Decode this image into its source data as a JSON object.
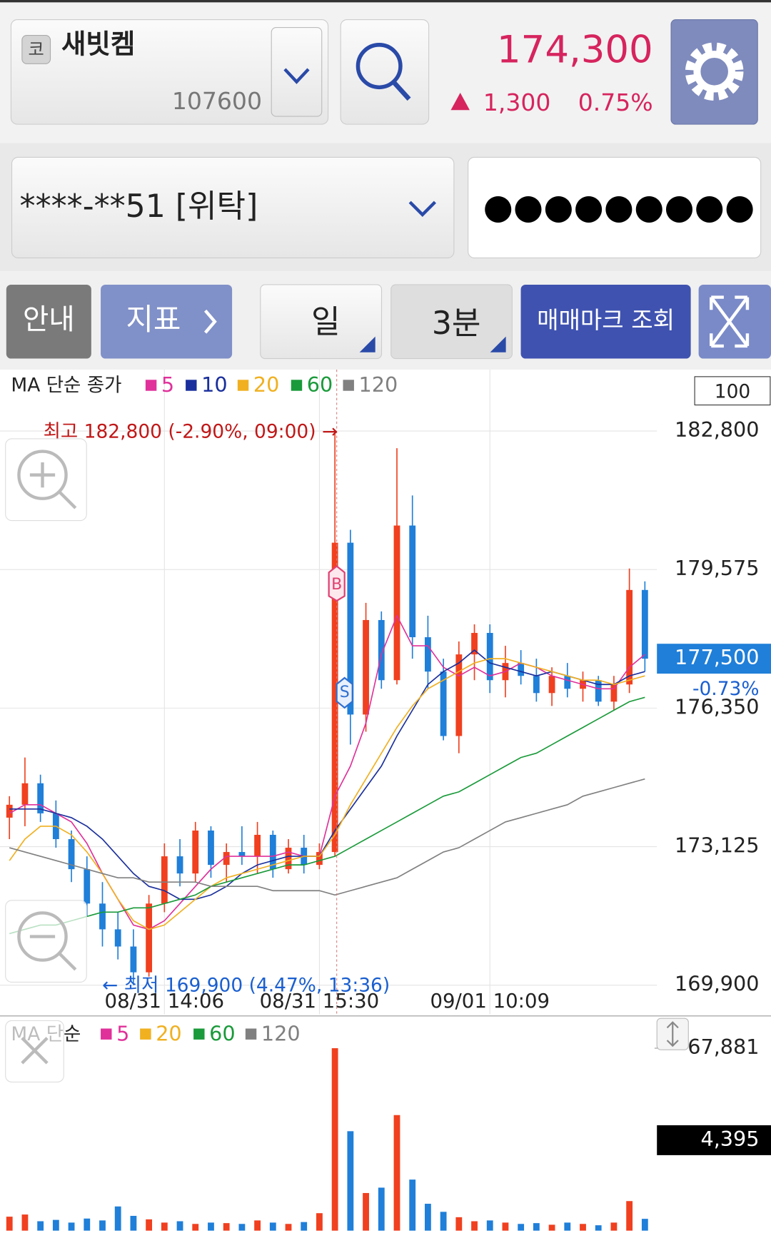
{
  "header": {
    "market_badge": "코",
    "stock_name": "새빗켐",
    "stock_code": "107600",
    "price": "174,300",
    "change": "1,300",
    "change_rate": "0.75%"
  },
  "account": {
    "number": "****-**51 [위탁]",
    "password": "●●●●●●●●●"
  },
  "toolbar": {
    "guide": "안내",
    "indicator": "지표",
    "period": "일",
    "interval": "3분",
    "trade_marks": "매매마크 조회"
  },
  "trade_markers": {
    "buy": "B",
    "sell": "S"
  },
  "chart_data": [
    {
      "type": "candlestick",
      "legend_title": "MA 단순 종가",
      "count_box": "100",
      "high_note": "최고 182,800 (-2.90%, 09:00) →",
      "low_note": "← 최저 169,900 (4.47%, 13:36)",
      "current_price": {
        "value": 177500,
        "label": "177,500"
      },
      "current_change": "-0.73%",
      "up_color": "#f0401f",
      "down_color": "#1f7fd9",
      "categories": [
        null,
        null,
        null,
        null,
        null,
        null,
        null,
        null,
        null,
        null,
        "08/31 14:06",
        null,
        null,
        null,
        null,
        null,
        null,
        null,
        null,
        null,
        "08/31 15:30",
        null,
        null,
        null,
        null,
        null,
        null,
        null,
        null,
        null,
        null,
        "09/01 10:09",
        null,
        null,
        null,
        null,
        null,
        null,
        null,
        null,
        null,
        null
      ],
      "open": [
        173800,
        174100,
        174600,
        173900,
        173300,
        172600,
        171800,
        171200,
        170800,
        170200,
        171800,
        172900,
        172500,
        173500,
        172700,
        173000,
        172900,
        173400,
        172600,
        173100,
        172700,
        173000,
        180200,
        176200,
        178400,
        177000,
        180600,
        178000,
        177200,
        175700,
        177600,
        178100,
        177000,
        177400,
        177100,
        176700,
        177100,
        176800,
        177000,
        176500,
        176900,
        179100
      ],
      "high": [
        174300,
        175200,
        174800,
        174200,
        173500,
        172900,
        172300,
        171600,
        171200,
        172000,
        173200,
        173300,
        173700,
        173600,
        173200,
        173600,
        173700,
        173500,
        173300,
        173400,
        173200,
        182800,
        180500,
        178800,
        178600,
        182400,
        181300,
        178500,
        177500,
        177900,
        178300,
        178300,
        177800,
        177700,
        177500,
        177300,
        177400,
        177200,
        177100,
        177100,
        179600,
        179300
      ],
      "low": [
        173300,
        173600,
        173700,
        173100,
        172300,
        171500,
        170800,
        170500,
        169900,
        170100,
        171600,
        172200,
        172300,
        172400,
        172300,
        172700,
        172500,
        172400,
        172500,
        172500,
        172600,
        172900,
        175500,
        175800,
        176800,
        176900,
        177500,
        176800,
        175600,
        175300,
        177000,
        176700,
        176600,
        176900,
        176500,
        176400,
        176600,
        176500,
        176400,
        176300,
        176700,
        177200
      ],
      "close": [
        174100,
        174600,
        173900,
        173300,
        172600,
        171800,
        171200,
        170800,
        170200,
        171800,
        172900,
        172500,
        173500,
        172700,
        173000,
        172900,
        173400,
        172600,
        173100,
        172700,
        173000,
        180200,
        176200,
        178400,
        177000,
        180600,
        178000,
        177200,
        175700,
        177600,
        178100,
        177000,
        177400,
        177100,
        176700,
        177100,
        176800,
        177000,
        176500,
        176900,
        179100,
        177500
      ],
      "ma_series": [
        {
          "name": "5",
          "color": "#e0309a",
          "values": [
            173900,
            174100,
            174100,
            173900,
            173700,
            173200,
            172500,
            171900,
            171300,
            171200,
            171400,
            171800,
            172200,
            172600,
            172900,
            172900,
            172900,
            172900,
            173000,
            172900,
            172900,
            174300,
            175000,
            176000,
            177600,
            178500,
            177800,
            177800,
            177300,
            177100,
            177300,
            177100,
            177200,
            177400,
            177300,
            177100,
            177000,
            176900,
            176800,
            176800,
            177300,
            177600
          ]
        },
        {
          "name": "10",
          "color": "#1a2f9c",
          "values": [
            174000,
            174000,
            174000,
            173900,
            173800,
            173600,
            173300,
            172900,
            172500,
            172200,
            172100,
            171900,
            171900,
            172000,
            172200,
            172500,
            172700,
            172800,
            172900,
            172900,
            172900,
            173500,
            174000,
            174500,
            175000,
            175700,
            176300,
            176900,
            177200,
            177400,
            177700,
            177400,
            177300,
            177200,
            177100,
            177200,
            177100,
            177000,
            176900,
            176900,
            177100,
            177200
          ]
        },
        {
          "name": "20",
          "color": "#f0b020",
          "values": [
            172800,
            173300,
            173600,
            173600,
            173400,
            173000,
            172500,
            171900,
            171400,
            171200,
            171300,
            171600,
            171900,
            172200,
            172400,
            172500,
            172600,
            172700,
            172800,
            172900,
            172900,
            173400,
            174100,
            174700,
            175300,
            175900,
            176400,
            176800,
            177000,
            177200,
            177400,
            177500,
            177500,
            177400,
            177300,
            177200,
            177100,
            177000,
            177000,
            176900,
            177000,
            177100
          ]
        },
        {
          "name": "60",
          "color": "#1a9a3a",
          "values": [
            171100,
            171200,
            171300,
            171300,
            171400,
            171500,
            171600,
            171600,
            171700,
            171700,
            171800,
            171900,
            172000,
            172200,
            172300,
            172400,
            172500,
            172600,
            172700,
            172700,
            172800,
            172900,
            173100,
            173300,
            173500,
            173700,
            173900,
            174100,
            174300,
            174400,
            174600,
            174800,
            175000,
            175200,
            175300,
            175500,
            175700,
            175900,
            176100,
            176300,
            176500,
            176600
          ]
        },
        {
          "name": "120",
          "color": "#808080",
          "values": [
            173100,
            173000,
            172900,
            172800,
            172700,
            172600,
            172500,
            172400,
            172400,
            172300,
            172300,
            172300,
            172300,
            172200,
            172200,
            172200,
            172200,
            172100,
            172100,
            172100,
            172100,
            172000,
            172100,
            172200,
            172300,
            172400,
            172600,
            172800,
            173000,
            173100,
            173300,
            173500,
            173700,
            173800,
            173900,
            174000,
            174100,
            174300,
            174400,
            174500,
            174600,
            174700
          ]
        }
      ],
      "ylim": [
        169220,
        184230
      ],
      "yticks": [
        {
          "value": 169900,
          "label": "169,900"
        },
        {
          "value": 173125,
          "label": "173,125"
        },
        {
          "value": 176350,
          "label": "176,350"
        },
        {
          "value": 179575,
          "label": "179,575"
        },
        {
          "value": 182800,
          "label": "182,800"
        }
      ],
      "grid": true
    },
    {
      "type": "bar",
      "legend_title": "MA 단순",
      "ma_legend": [
        {
          "name": "5",
          "color": "#e0309a"
        },
        {
          "name": "20",
          "color": "#f0b020"
        },
        {
          "name": "60",
          "color": "#1a9a3a"
        },
        {
          "name": "120",
          "color": "#808080"
        }
      ],
      "values": [
        5200,
        6000,
        3500,
        4000,
        3000,
        4500,
        3800,
        9000,
        5500,
        4200,
        3000,
        3500,
        2500,
        3000,
        2800,
        2500,
        3800,
        3000,
        2500,
        3200,
        6500,
        67881,
        37000,
        14000,
        16000,
        43000,
        19000,
        10000,
        7000,
        5000,
        3500,
        3800,
        3000,
        2500,
        2800,
        2200,
        3000,
        2500,
        2000,
        3000,
        11000,
        4395
      ],
      "current_volume": {
        "value": 4395,
        "label": "4,395"
      },
      "ylim": [
        0,
        67881
      ],
      "yticks": [
        {
          "value": 67881,
          "label": "67,881"
        }
      ]
    }
  ]
}
